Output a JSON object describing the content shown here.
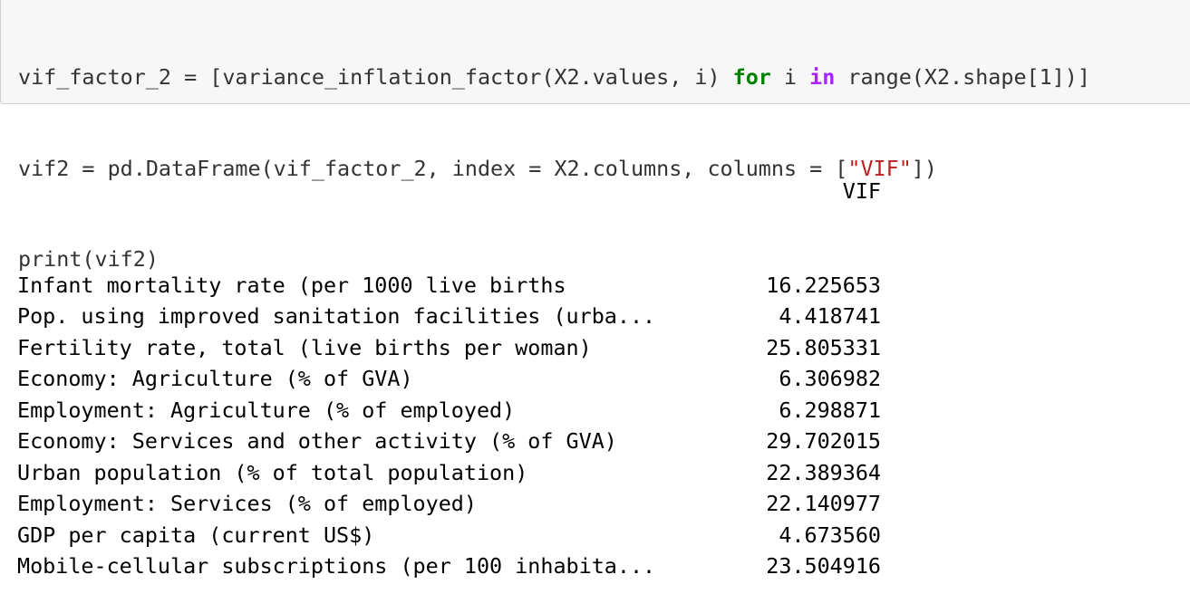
{
  "code": {
    "lines": [
      [
        "vif_factor_2 = [variance_inflation_factor(X2.values, i) ",
        "for",
        " i ",
        "in",
        " range(X2.shape[1])]"
      ],
      [
        "vif2 = pd.DataFrame(vif_factor_2, index = X2.columns, columns = [",
        "\"VIF\"",
        "])"
      ],
      [
        "print(vif2)"
      ]
    ]
  },
  "output": {
    "header_label": "",
    "header_value": "VIF",
    "rows": [
      {
        "label": "Infant mortality rate (per 1000 live births",
        "value": "16.225653"
      },
      {
        "label": "Pop. using improved sanitation facilities (urba...",
        "value": "4.418741"
      },
      {
        "label": "Fertility rate, total (live births per woman)",
        "value": "25.805331"
      },
      {
        "label": "Economy: Agriculture (% of GVA)",
        "value": "6.306982"
      },
      {
        "label": "Employment: Agriculture (% of employed)",
        "value": "6.298871"
      },
      {
        "label": "Economy: Services and other activity (% of GVA)",
        "value": "29.702015"
      },
      {
        "label": "Urban population (% of total population)",
        "value": "22.389364"
      },
      {
        "label": "Employment: Services (% of employed)",
        "value": "22.140977"
      },
      {
        "label": "GDP per capita (current US$)",
        "value": "4.673560"
      },
      {
        "label": "Mobile-cellular subscriptions (per 100 inhabita...",
        "value": "23.504916"
      }
    ]
  }
}
